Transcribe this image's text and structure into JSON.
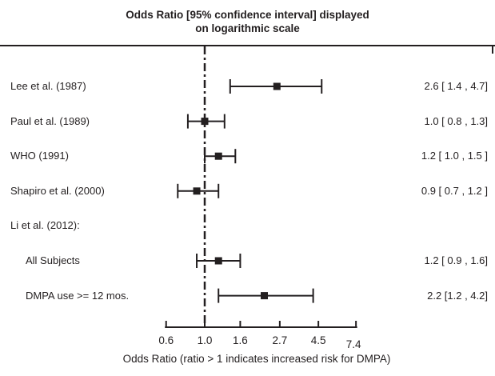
{
  "title": {
    "line1": "Odds Ratio [95% confidence  interval] displayed",
    "line2": "on logarithmic scale"
  },
  "chart_data": {
    "type": "forest",
    "x_scale": "log",
    "xlabel": "Odds Ratio (ratio > 1 indicates increased risk for DMPA)",
    "x_ticks": [
      0.6,
      1.0,
      1.6,
      2.7,
      4.5,
      7.4
    ],
    "x_tick_labels": [
      "0.6",
      "1.0",
      "1.6",
      "2.7",
      "4.5",
      "7.4"
    ],
    "xlim": [
      0.6,
      7.4
    ],
    "reference_line": 1.0,
    "grid": false,
    "rows": [
      {
        "label": "Lee et al. (1987)",
        "indent": false,
        "header": false,
        "or": 2.6,
        "lo": 1.4,
        "hi": 4.7,
        "value_text": "2.6 [ 1.4 , 4.7]"
      },
      {
        "label": "Paul et al. (1989)",
        "indent": false,
        "header": false,
        "or": 1.0,
        "lo": 0.8,
        "hi": 1.3,
        "value_text": "1.0 [ 0.8 , 1.3]"
      },
      {
        "label": "WHO (1991)",
        "indent": false,
        "header": false,
        "or": 1.2,
        "lo": 1.0,
        "hi": 1.5,
        "value_text": "1.2 [ 1.0 , 1.5 ]"
      },
      {
        "label": "Shapiro et al. (2000)",
        "indent": false,
        "header": false,
        "or": 0.9,
        "lo": 0.7,
        "hi": 1.2,
        "value_text": "0.9 [ 0.7 , 1.2 ]"
      },
      {
        "label": "Li et al. (2012):",
        "indent": false,
        "header": true
      },
      {
        "label": "All Subjects",
        "indent": true,
        "header": false,
        "or": 1.2,
        "lo": 0.9,
        "hi": 1.6,
        "value_text": "1.2 [ 0.9 , 1.6]"
      },
      {
        "label": "DMPA use >= 12 mos.",
        "indent": true,
        "header": false,
        "or": 2.2,
        "lo": 1.2,
        "hi": 4.2,
        "value_text": "2.2 [1.2 , 4.2]"
      }
    ]
  },
  "colors": {
    "ink": "#231f20",
    "background": "#ffffff"
  }
}
